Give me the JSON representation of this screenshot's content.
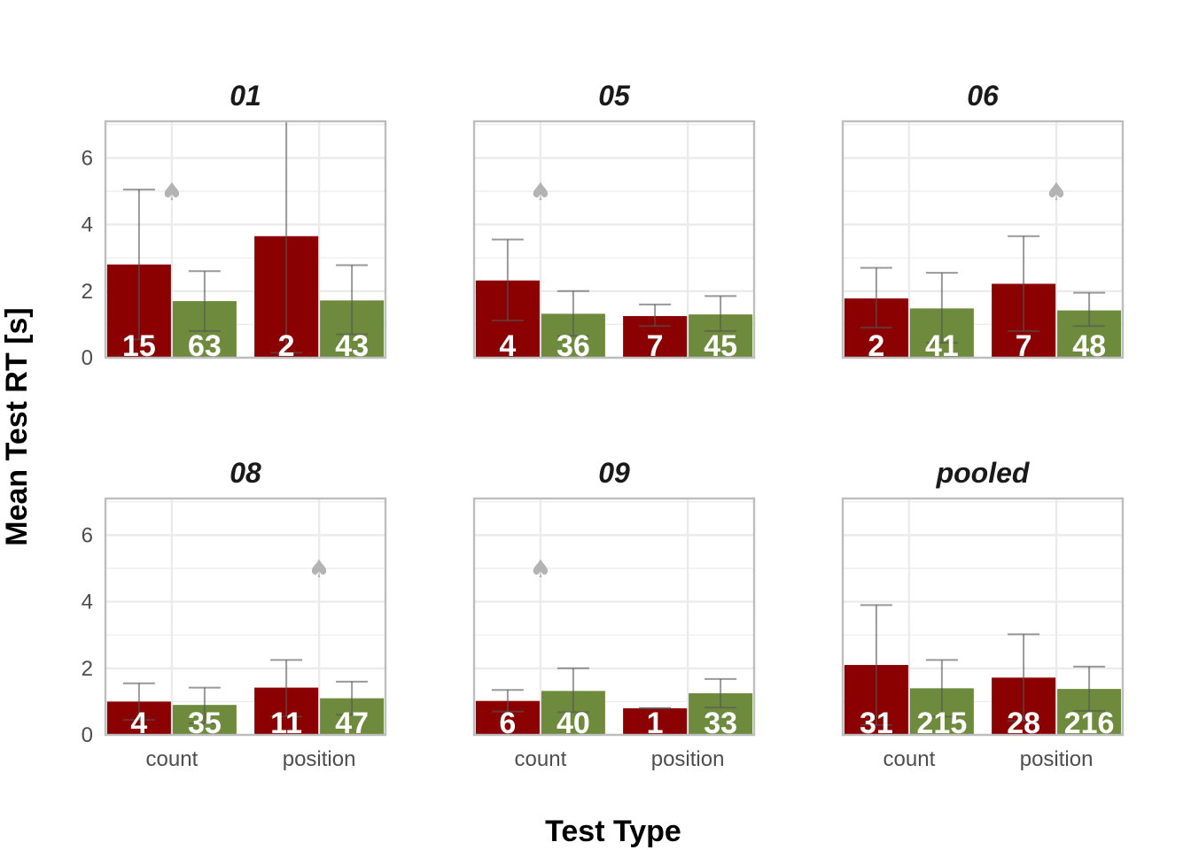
{
  "chart_data": {
    "type": "bar",
    "xlabel": "Test Type",
    "ylabel": "Mean Test RT [s]",
    "categories": [
      "count",
      "position"
    ],
    "ylim": [
      0,
      7.1
    ],
    "yticks": [
      0,
      2,
      4,
      6
    ],
    "grid": true,
    "legend": "none",
    "colors": {
      "group1": "#8b0000",
      "group2": "#6e8b3d",
      "errorbar": "#555555",
      "marker": "#b3b3b3",
      "panel_border": "#bdbdbd",
      "grid": "#ebebeb"
    },
    "marker_symbol": "♠",
    "facets": [
      {
        "title": "01",
        "show_x_labels": false,
        "show_y_labels": true,
        "bars": [
          {
            "category": "count",
            "group": 1,
            "value": 2.8,
            "err_low": 0.55,
            "err_high": 5.05,
            "n": "15"
          },
          {
            "category": "count",
            "group": 2,
            "value": 1.7,
            "err_low": 0.8,
            "err_high": 2.6,
            "n": "63"
          },
          {
            "category": "position",
            "group": 1,
            "value": 3.65,
            "err_low": 0.15,
            "err_high": 7.1,
            "n": "2"
          },
          {
            "category": "position",
            "group": 2,
            "value": 1.72,
            "err_low": 0.7,
            "err_high": 2.78,
            "n": "43"
          }
        ],
        "markers": [
          {
            "category": "count",
            "value": 5.0
          }
        ]
      },
      {
        "title": "05",
        "show_x_labels": false,
        "show_y_labels": false,
        "bars": [
          {
            "category": "count",
            "group": 1,
            "value": 2.32,
            "err_low": 1.12,
            "err_high": 3.55,
            "n": "4"
          },
          {
            "category": "count",
            "group": 2,
            "value": 1.32,
            "err_low": 0.65,
            "err_high": 2.0,
            "n": "36"
          },
          {
            "category": "position",
            "group": 1,
            "value": 1.25,
            "err_low": 0.95,
            "err_high": 1.6,
            "n": "7"
          },
          {
            "category": "position",
            "group": 2,
            "value": 1.3,
            "err_low": 0.8,
            "err_high": 1.85,
            "n": "45"
          }
        ],
        "markers": [
          {
            "category": "count",
            "value": 5.0
          }
        ]
      },
      {
        "title": "06",
        "show_x_labels": false,
        "show_y_labels": false,
        "bars": [
          {
            "category": "count",
            "group": 1,
            "value": 1.78,
            "err_low": 0.9,
            "err_high": 2.7,
            "n": "2"
          },
          {
            "category": "count",
            "group": 2,
            "value": 1.48,
            "err_low": 0.45,
            "err_high": 2.55,
            "n": "41"
          },
          {
            "category": "position",
            "group": 1,
            "value": 2.22,
            "err_low": 0.8,
            "err_high": 3.65,
            "n": "7"
          },
          {
            "category": "position",
            "group": 2,
            "value": 1.42,
            "err_low": 0.95,
            "err_high": 1.95,
            "n": "48"
          }
        ],
        "markers": [
          {
            "category": "position",
            "value": 5.0
          }
        ]
      },
      {
        "title": "08",
        "show_x_labels": true,
        "show_y_labels": true,
        "bars": [
          {
            "category": "count",
            "group": 1,
            "value": 1.0,
            "err_low": 0.45,
            "err_high": 1.55,
            "n": "4"
          },
          {
            "category": "count",
            "group": 2,
            "value": 0.9,
            "err_low": 0.35,
            "err_high": 1.42,
            "n": "35"
          },
          {
            "category": "position",
            "group": 1,
            "value": 1.42,
            "err_low": 0.55,
            "err_high": 2.25,
            "n": "11"
          },
          {
            "category": "position",
            "group": 2,
            "value": 1.1,
            "err_low": 0.6,
            "err_high": 1.6,
            "n": "47"
          }
        ],
        "markers": [
          {
            "category": "position",
            "value": 5.0
          }
        ]
      },
      {
        "title": "09",
        "show_x_labels": true,
        "show_y_labels": false,
        "bars": [
          {
            "category": "count",
            "group": 1,
            "value": 1.02,
            "err_low": 0.7,
            "err_high": 1.35,
            "n": "6"
          },
          {
            "category": "count",
            "group": 2,
            "value": 1.32,
            "err_low": 0.68,
            "err_high": 2.0,
            "n": "40"
          },
          {
            "category": "position",
            "group": 1,
            "value": 0.8,
            "err_low": 0.8,
            "err_high": 0.8,
            "n": "1"
          },
          {
            "category": "position",
            "group": 2,
            "value": 1.25,
            "err_low": 0.82,
            "err_high": 1.68,
            "n": "33"
          }
        ],
        "markers": [
          {
            "category": "count",
            "value": 5.0
          }
        ]
      },
      {
        "title": "pooled",
        "show_x_labels": true,
        "show_y_labels": false,
        "bars": [
          {
            "category": "count",
            "group": 1,
            "value": 2.1,
            "err_low": 0.3,
            "err_high": 3.9,
            "n": "31"
          },
          {
            "category": "count",
            "group": 2,
            "value": 1.4,
            "err_low": 0.55,
            "err_high": 2.25,
            "n": "215"
          },
          {
            "category": "position",
            "group": 1,
            "value": 1.72,
            "err_low": 0.42,
            "err_high": 3.02,
            "n": "28"
          },
          {
            "category": "position",
            "group": 2,
            "value": 1.38,
            "err_low": 0.72,
            "err_high": 2.05,
            "n": "216"
          }
        ],
        "markers": []
      }
    ]
  }
}
